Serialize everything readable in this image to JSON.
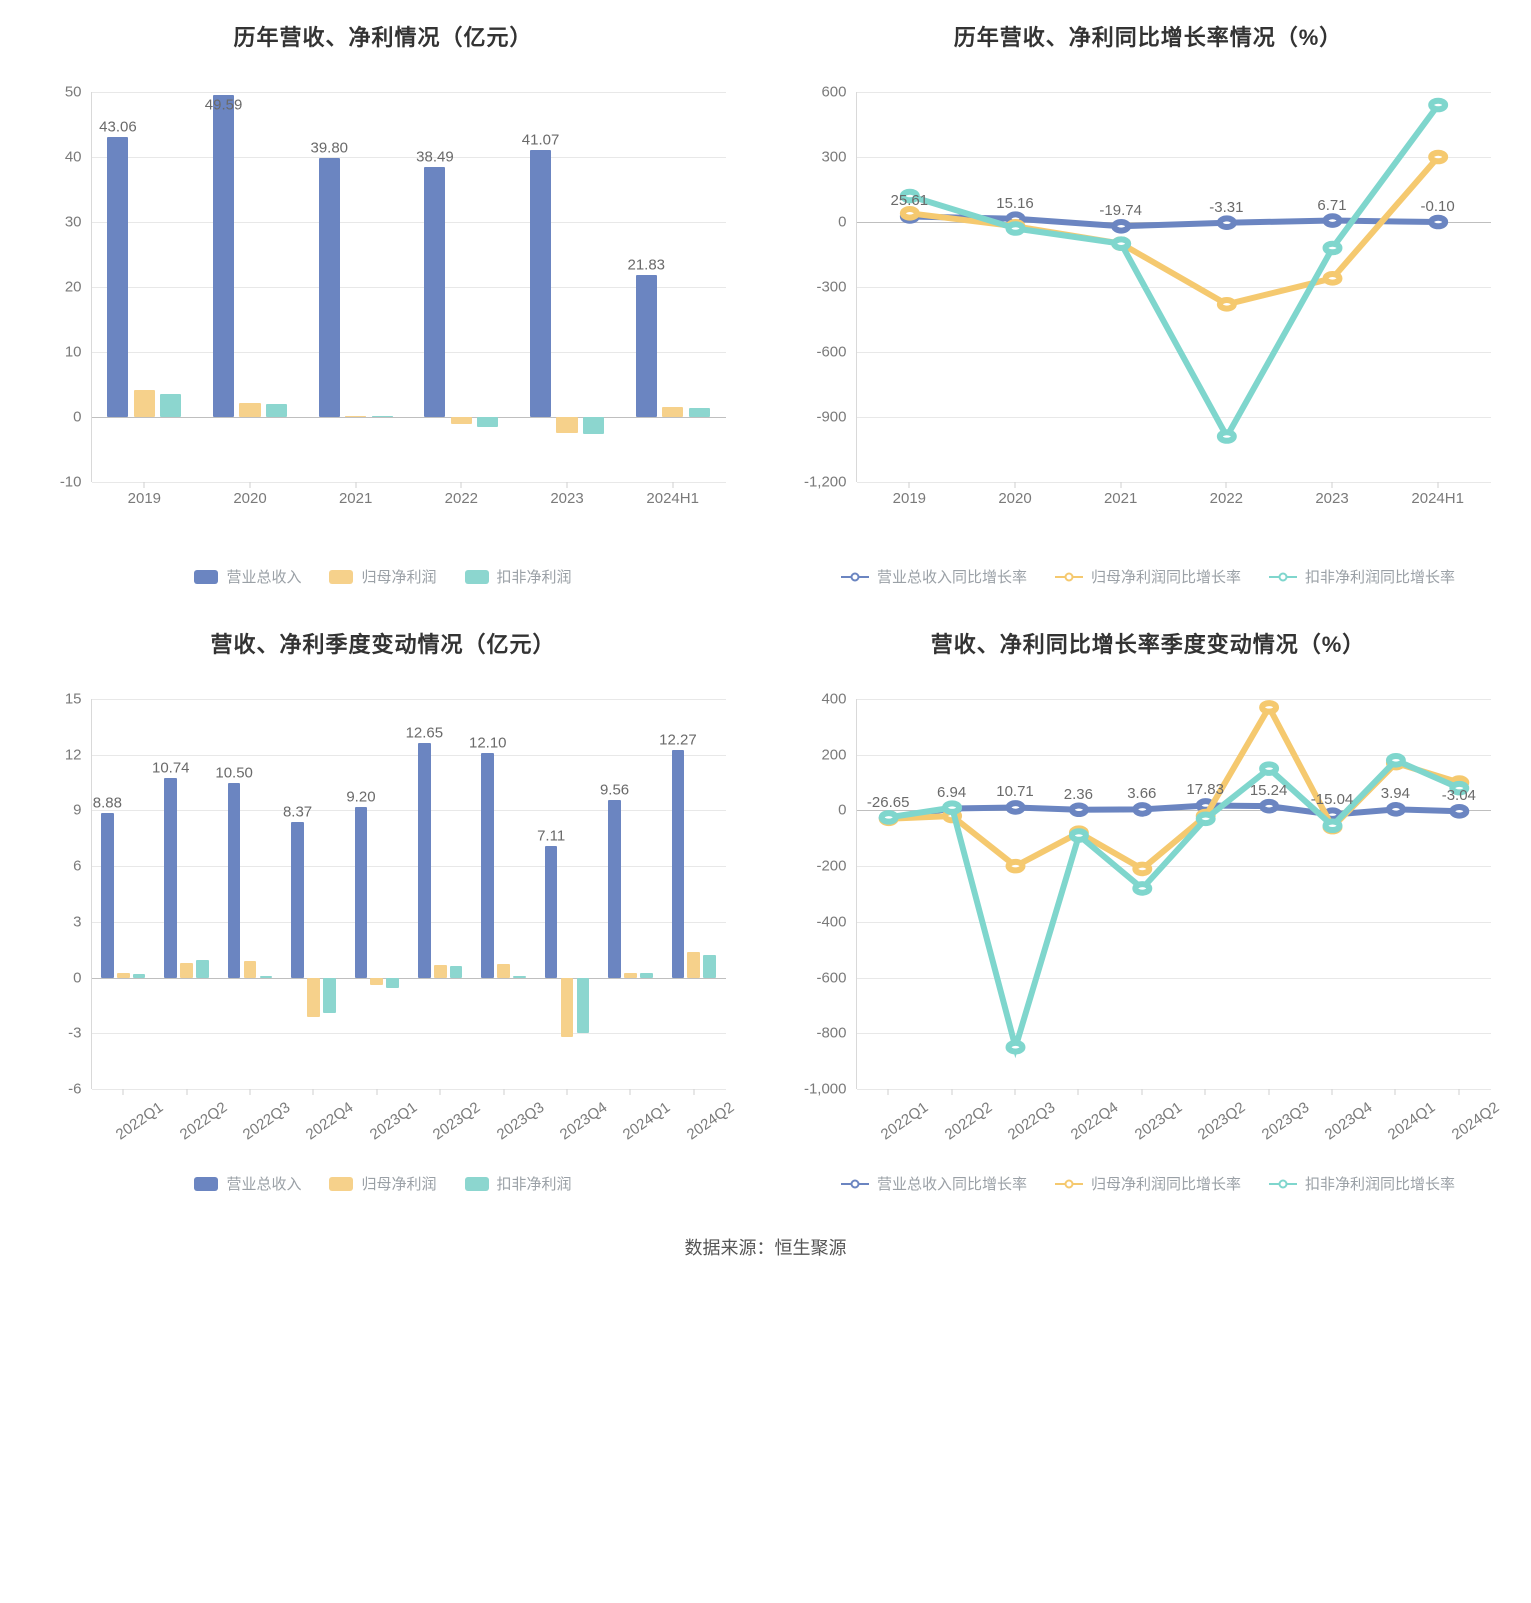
{
  "colors": {
    "bar_blue": "#6b85c1",
    "bar_yellow": "#f6d18b",
    "bar_teal": "#8cd6cf",
    "line_blue": "#6b85c1",
    "line_yellow": "#f5c96f",
    "line_teal": "#7fd6cd",
    "grid": "#e8e8e8",
    "axis": "#d9d9d9",
    "tick_text": "#7a7a7a",
    "title_text": "#333333",
    "label_text": "#6a6a6a",
    "legend_text": "#9aa0a6",
    "background": "#ffffff"
  },
  "typography": {
    "title_fontsize": 22,
    "title_weight": 700,
    "tick_fontsize": 15,
    "label_fontsize": 15,
    "legend_fontsize": 15,
    "source_fontsize": 18
  },
  "source_text": "数据来源：恒生聚源",
  "chart1": {
    "type": "bar",
    "title": "历年营收、净利情况（亿元）",
    "categories": [
      "2019",
      "2020",
      "2021",
      "2022",
      "2023",
      "2024H1"
    ],
    "series": [
      {
        "name": "营业总收入",
        "color_key": "bar_blue",
        "values": [
          43.06,
          49.59,
          39.8,
          38.49,
          41.07,
          21.83
        ]
      },
      {
        "name": "归母净利润",
        "color_key": "bar_yellow",
        "values": [
          4.2,
          2.1,
          0.1,
          -1.1,
          -2.5,
          1.6
        ]
      },
      {
        "name": "扣非净利润",
        "color_key": "bar_teal",
        "values": [
          3.6,
          2.0,
          0.2,
          -1.6,
          -2.6,
          1.4
        ]
      }
    ],
    "bar_labels": [
      "43.06",
      "49.59",
      "39.80",
      "38.49",
      "41.07",
      "21.83"
    ],
    "ylim": [
      -10,
      50
    ],
    "ytick_step": 10,
    "bar_group_width": 0.7,
    "bar_gap": 0.05,
    "legend": [
      "营业总收入",
      "归母净利润",
      "扣非净利润"
    ]
  },
  "chart2": {
    "type": "line",
    "title": "历年营收、净利同比增长率情况（%）",
    "categories": [
      "2019",
      "2020",
      "2021",
      "2022",
      "2023",
      "2024H1"
    ],
    "series": [
      {
        "name": "营业总收入同比增长率",
        "color_key": "line_blue",
        "values": [
          25.61,
          15.16,
          -19.74,
          -3.31,
          6.71,
          -0.1
        ],
        "show_labels": true
      },
      {
        "name": "归母净利润同比增长率",
        "color_key": "line_yellow",
        "values": [
          40,
          -20,
          -100,
          -380,
          -260,
          300
        ],
        "show_labels": false
      },
      {
        "name": "扣非净利润同比增长率",
        "color_key": "line_teal",
        "values": [
          120,
          -30,
          -100,
          -990,
          -120,
          540
        ],
        "show_labels": false
      }
    ],
    "point_labels": [
      "25.61",
      "15.16",
      "-19.74",
      "-3.31",
      "6.71",
      "-0.10"
    ],
    "ylim": [
      -1200,
      600
    ],
    "ytick_step": 300,
    "marker_size": 5,
    "line_width": 2,
    "legend": [
      "营业总收入同比增长率",
      "归母净利润同比增长率",
      "扣非净利润同比增长率"
    ]
  },
  "chart3": {
    "type": "bar",
    "title": "营收、净利季度变动情况（亿元）",
    "categories": [
      "2022Q1",
      "2022Q2",
      "2022Q3",
      "2022Q4",
      "2023Q1",
      "2023Q2",
      "2023Q3",
      "2023Q4",
      "2024Q1",
      "2024Q2"
    ],
    "rotate_xticks": true,
    "series": [
      {
        "name": "营业总收入",
        "color_key": "bar_blue",
        "values": [
          8.88,
          10.74,
          10.5,
          8.37,
          9.2,
          12.65,
          12.1,
          7.11,
          9.56,
          12.27
        ]
      },
      {
        "name": "归母净利润",
        "color_key": "bar_yellow",
        "values": [
          0.25,
          0.8,
          0.9,
          -2.1,
          -0.4,
          0.7,
          0.75,
          -3.2,
          0.25,
          1.4
        ]
      },
      {
        "name": "扣非净利润",
        "color_key": "bar_teal",
        "values": [
          0.2,
          0.95,
          0.1,
          -1.9,
          -0.55,
          0.65,
          0.1,
          -3.0,
          0.25,
          1.2
        ]
      }
    ],
    "bar_labels": [
      "8.88",
      "10.74",
      "10.50",
      "8.37",
      "9.20",
      "12.65",
      "12.10",
      "7.11",
      "9.56",
      "12.27"
    ],
    "ylim": [
      -6,
      15
    ],
    "ytick_step": 3,
    "bar_group_width": 0.7,
    "bar_gap": 0.05,
    "legend": [
      "营业总收入",
      "归母净利润",
      "扣非净利润"
    ]
  },
  "chart4": {
    "type": "line",
    "title": "营收、净利同比增长率季度变动情况（%）",
    "categories": [
      "2022Q1",
      "2022Q2",
      "2022Q3",
      "2022Q4",
      "2023Q1",
      "2023Q2",
      "2023Q3",
      "2023Q4",
      "2024Q1",
      "2024Q2"
    ],
    "rotate_xticks": true,
    "series": [
      {
        "name": "营业总收入同比增长率",
        "color_key": "line_blue",
        "values": [
          -26.65,
          6.94,
          10.71,
          2.36,
          3.66,
          17.83,
          15.24,
          -15.04,
          3.94,
          -3.04
        ],
        "show_labels": true
      },
      {
        "name": "归母净利润同比增长率",
        "color_key": "line_yellow",
        "values": [
          -30,
          -20,
          -200,
          -80,
          -210,
          -20,
          370,
          -60,
          170,
          100
        ],
        "show_labels": false
      },
      {
        "name": "扣非净利润同比增长率",
        "color_key": "line_teal",
        "values": [
          -25,
          10,
          -850,
          -90,
          -280,
          -30,
          150,
          -55,
          180,
          80
        ],
        "show_labels": false
      }
    ],
    "point_labels": [
      "-26.65",
      "6.94",
      "10.71",
      "2.36",
      "3.66",
      "17.83",
      "15.24",
      "-15.04",
      "3.94",
      "-3.04"
    ],
    "ylim": [
      -1000,
      400
    ],
    "ytick_step": 200,
    "marker_size": 5,
    "line_width": 2,
    "legend": [
      "营业总收入同比增长率",
      "归母净利润同比增长率",
      "扣非净利润同比增长率"
    ]
  }
}
